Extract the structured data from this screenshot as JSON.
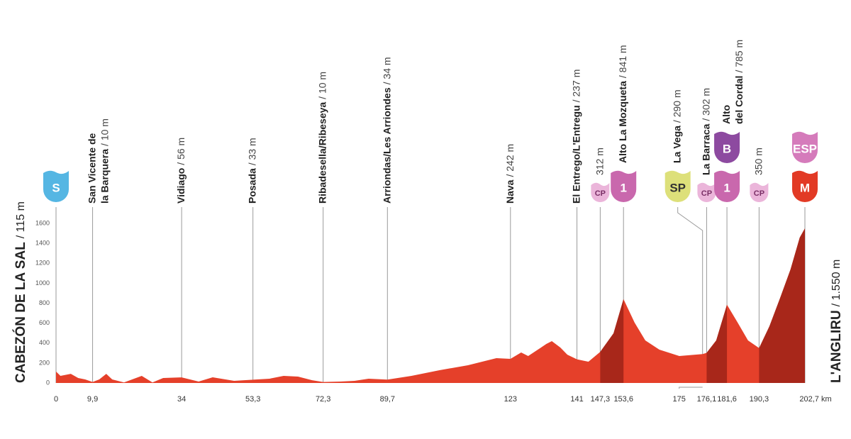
{
  "chart_data": {
    "type": "profile",
    "start_label": {
      "name": "CABEZÓN DE LA SAL",
      "altitude": "/ 115 m"
    },
    "finish_label": {
      "name": "L'ANGLIRU",
      "altitude": "/ 1.550 m"
    },
    "x": [
      0,
      1.2,
      4.0,
      6.0,
      7.9,
      9.9,
      11.7,
      13.6,
      15.2,
      18.4,
      23.2,
      26.1,
      29.0,
      34,
      38.6,
      42.4,
      48.2,
      53.3,
      57.8,
      61.6,
      65.5,
      69.3,
      72.3,
      77.0,
      80.8,
      84.6,
      89.7,
      96.2,
      103.8,
      111.5,
      119.2,
      123,
      125.9,
      127.8,
      130.7,
      132.7,
      134.2,
      136.5,
      138.4,
      141,
      144.1,
      147.3,
      150.9,
      153.6,
      156.6,
      159.5,
      163.3,
      168.7,
      175,
      176.1,
      178.7,
      181.6,
      184.5,
      187.3,
      190.3,
      193.1,
      196.0,
      198.8,
      201.3,
      202.7
    ],
    "values": [
      115,
      71,
      92,
      50,
      36,
      10,
      36,
      92,
      36,
      5,
      71,
      5,
      50,
      56,
      14,
      57,
      21,
      33,
      43,
      71,
      64,
      28,
      10,
      14,
      21,
      43,
      34,
      71,
      128,
      178,
      249,
      242,
      306,
      270,
      341,
      391,
      420,
      356,
      284,
      237,
      213,
      312,
      498,
      841,
      605,
      427,
      334,
      270,
      290,
      302,
      427,
      785,
      605,
      427,
      350,
      569,
      853,
      1138,
      1458,
      1550
    ],
    "color": "#e5402a",
    "climb_color": "#a8271a",
    "climbs": [
      [
        147.3,
        153.6
      ],
      [
        176.1,
        181.6
      ],
      [
        190.3,
        202.7
      ]
    ],
    "xlim": [
      0,
      202.7
    ],
    "ylim": [
      0,
      1600
    ],
    "yticks": [
      0,
      200,
      400,
      600,
      800,
      1000,
      1200,
      1400,
      1600
    ],
    "xticks": [
      0,
      {
        "value": 9.9,
        "label": "9,9"
      },
      34,
      {
        "value": 53.3,
        "label": "53,3"
      },
      {
        "value": 72.3,
        "label": "72,3"
      },
      {
        "value": 89.7,
        "label": "89,7"
      },
      123,
      141,
      {
        "value": 147.3,
        "label": "147,3"
      },
      {
        "value": 153.6,
        "label": "153,6"
      },
      175,
      {
        "value": 176.1,
        "label": "176,1"
      },
      {
        "value": 181.6,
        "label": "181,6"
      },
      {
        "value": 190.3,
        "label": "190,3"
      },
      {
        "value": 202.7,
        "label": "202,7 km"
      }
    ],
    "waypoints": [
      {
        "km": 0,
        "name": [],
        "badges": [
          {
            "text": "S",
            "color": "#55b6e3",
            "text_color": "#ffffff"
          }
        ]
      },
      {
        "km": 9.9,
        "name": [
          "San Vicente de",
          "la Barquera"
        ],
        "altitude": "/ 10 m"
      },
      {
        "km": 34,
        "name": [
          "Vidiago"
        ],
        "altitude": "/ 56 m"
      },
      {
        "km": 53.3,
        "name": [
          "Posada"
        ],
        "altitude": "/ 33 m"
      },
      {
        "km": 72.3,
        "name": [
          "Ribadesella/Ribeseya"
        ],
        "altitude": "/ 10 m"
      },
      {
        "km": 89.7,
        "name": [
          "Arriondas/Les Arriondes"
        ],
        "altitude": "/ 34 m"
      },
      {
        "km": 123,
        "name": [
          "Nava"
        ],
        "altitude": "/ 242 m"
      },
      {
        "km": 141,
        "name": [
          "El Entrego/L'Entregu"
        ],
        "altitude": "/ 237 m"
      },
      {
        "km": 147.3,
        "name": [],
        "altitude": "312 m",
        "badges": [
          {
            "text": "CP",
            "color": "#ebb5da",
            "text_color": "#7a2f66",
            "size": "small"
          }
        ]
      },
      {
        "km": 153.6,
        "name": [
          "Alto La Mozqueta"
        ],
        "altitude": "/ 841 m",
        "badges": [
          {
            "text": "1",
            "color": "#c968ad",
            "text_color": "#ffffff"
          }
        ]
      },
      {
        "km": 175,
        "name": [
          "La Vega"
        ],
        "altitude": "/ 290 m",
        "badges": [
          {
            "text": "SP",
            "color": "#dde07a",
            "text_color": "#333333"
          }
        ]
      },
      {
        "km": 176.1,
        "name": [
          "La Barraca"
        ],
        "altitude": "/ 302 m",
        "badges": [
          {
            "text": "CP",
            "color": "#ebb5da",
            "text_color": "#7a2f66",
            "size": "small"
          }
        ]
      },
      {
        "km": 181.6,
        "name": [
          "Alto",
          "del Cordal"
        ],
        "altitude": "/ 785 m",
        "badges": [
          {
            "text": "1",
            "color": "#c968ad",
            "text_color": "#ffffff"
          },
          {
            "text": "B",
            "color": "#8d4aa0",
            "text_color": "#ffffff"
          }
        ]
      },
      {
        "km": 190.3,
        "name": [],
        "altitude": "350 m",
        "badges": [
          {
            "text": "CP",
            "color": "#ebb5da",
            "text_color": "#7a2f66",
            "size": "small"
          }
        ]
      },
      {
        "km": 202.7,
        "name": [],
        "badges": [
          {
            "text": "M",
            "color": "#e23a25",
            "text_color": "#ffffff"
          },
          {
            "text": "ESP",
            "color": "#d57bbb",
            "text_color": "#ffffff"
          }
        ]
      }
    ]
  }
}
